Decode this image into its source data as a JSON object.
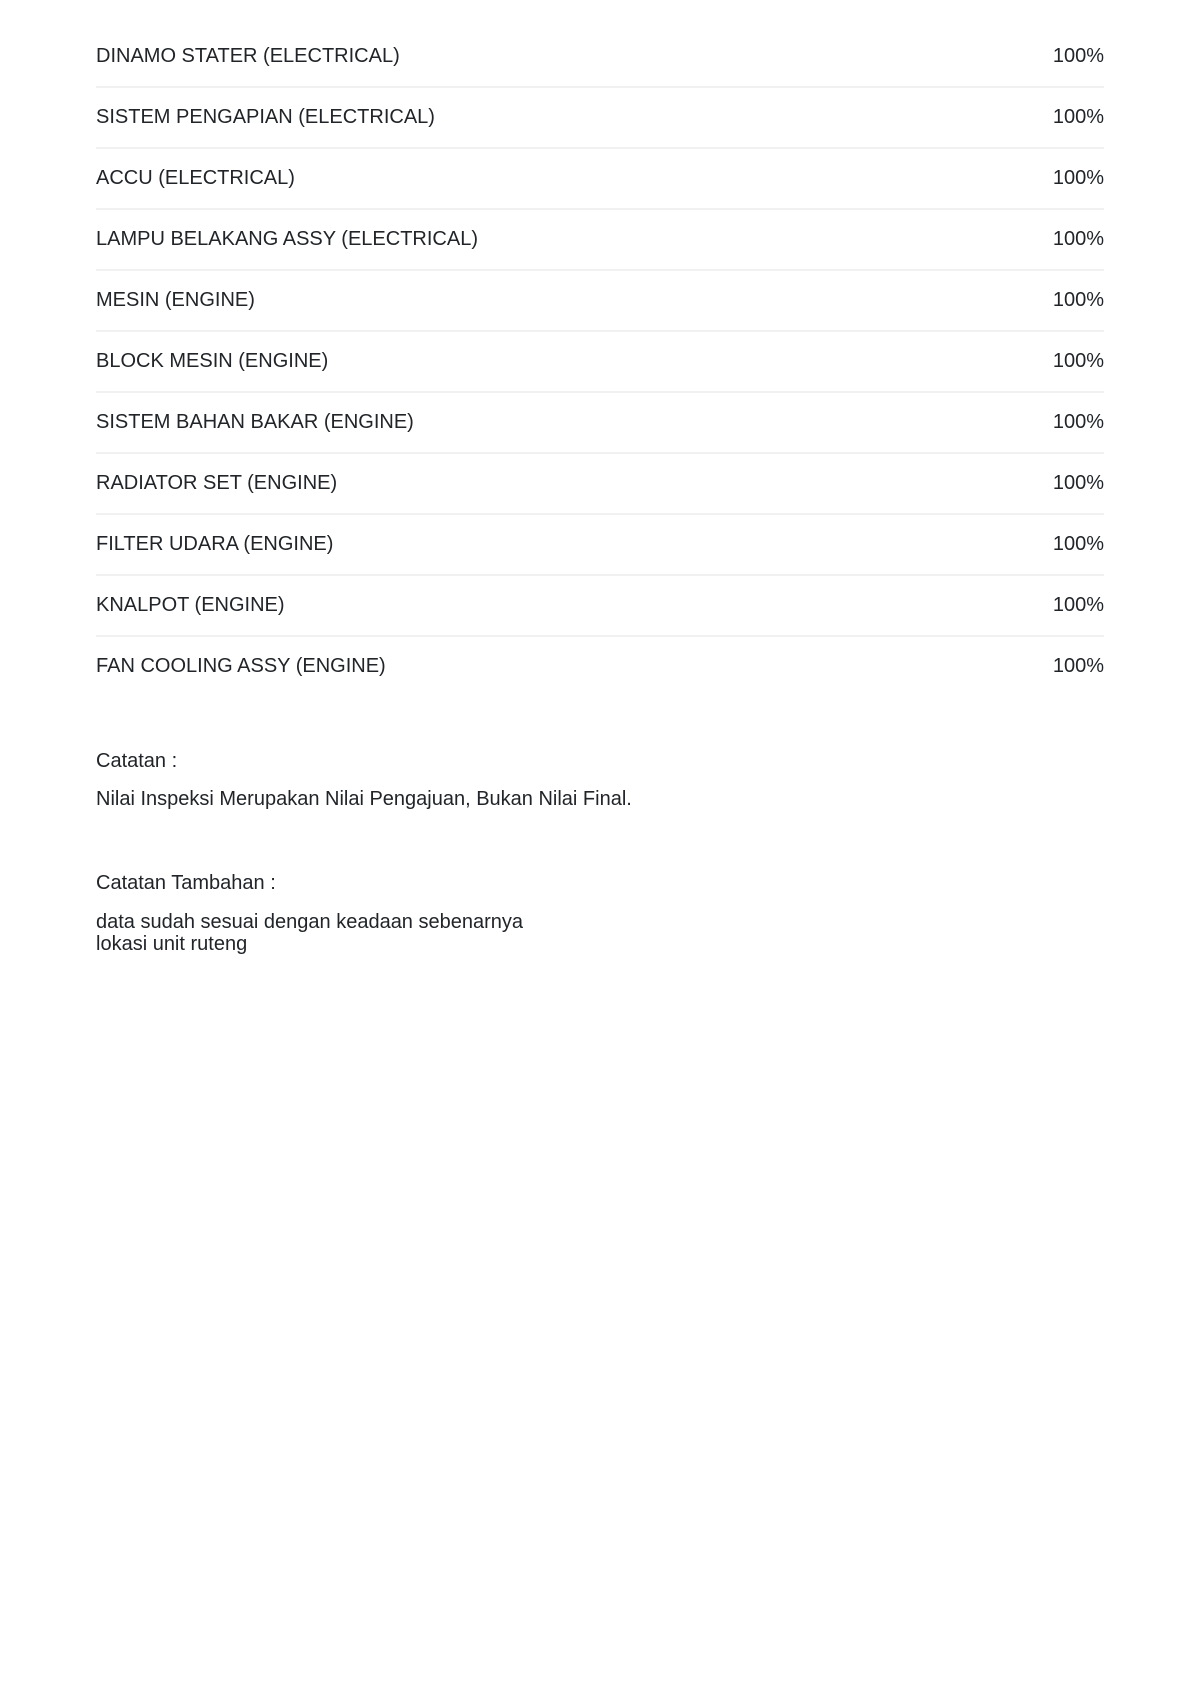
{
  "page": {
    "background_color": "#ffffff",
    "text_color": "#212529",
    "divider_color": "#f1f1f1"
  },
  "inspection_list": {
    "items": [
      {
        "label": "DINAMO STATER (ELECTRICAL)",
        "score": "100%"
      },
      {
        "label": "SISTEM PENGAPIAN (ELECTRICAL)",
        "score": "100%"
      },
      {
        "label": "ACCU (ELECTRICAL)",
        "score": "100%"
      },
      {
        "label": "LAMPU BELAKANG ASSY (ELECTRICAL)",
        "score": "100%"
      },
      {
        "label": "MESIN (ENGINE)",
        "score": "100%"
      },
      {
        "label": "BLOCK MESIN (ENGINE)",
        "score": "100%"
      },
      {
        "label": "SISTEM BAHAN BAKAR (ENGINE)",
        "score": "100%"
      },
      {
        "label": "RADIATOR SET (ENGINE)",
        "score": "100%"
      },
      {
        "label": "FILTER UDARA (ENGINE)",
        "score": "100%"
      },
      {
        "label": "KNALPOT (ENGINE)",
        "score": "100%"
      },
      {
        "label": "FAN COOLING ASSY (ENGINE)",
        "score": "100%"
      }
    ]
  },
  "notes": {
    "label": "Catatan :",
    "body": "Nilai Inspeksi Merupakan Nilai Pengajuan, Bukan Nilai Final."
  },
  "additional_notes": {
    "label": "Catatan Tambahan :",
    "lines": [
      "data sudah sesuai dengan keadaan sebenarnya",
      "lokasi unit ruteng"
    ]
  }
}
